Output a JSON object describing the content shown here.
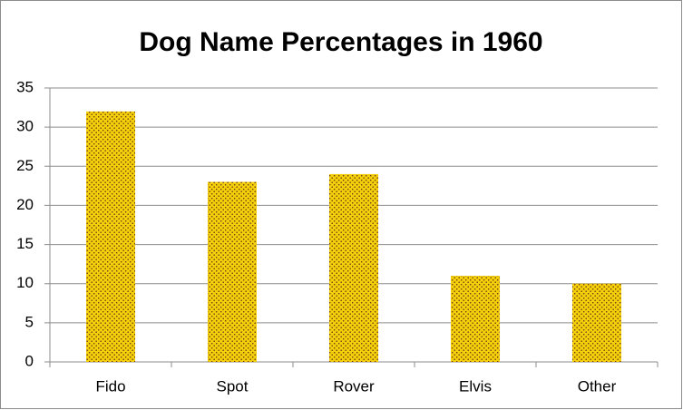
{
  "chart_data": {
    "type": "bar",
    "title": "Dog Name Percentages in 1960",
    "categories": [
      "Fido",
      "Spot",
      "Rover",
      "Elvis",
      "Other"
    ],
    "values": [
      32,
      23,
      24,
      11,
      10
    ],
    "color": "#f2d00c",
    "ylim": [
      0,
      35
    ],
    "yticks": [
      0,
      5,
      10,
      15,
      20,
      25,
      30,
      35
    ],
    "grid": true
  }
}
